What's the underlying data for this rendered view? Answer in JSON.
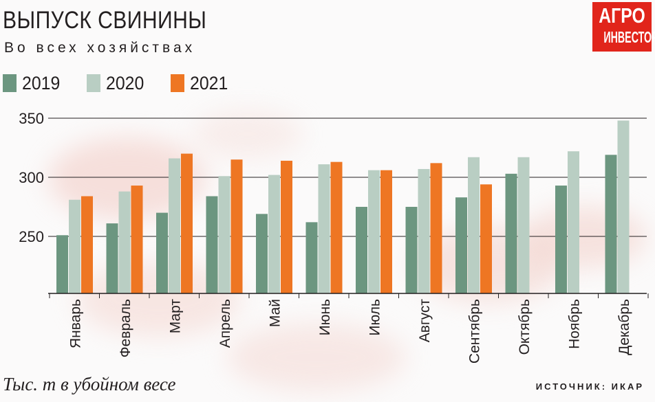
{
  "header": {
    "title": "ВЫПУСК СВИНИНЫ",
    "subtitle": "Во всех хозяйствах"
  },
  "logo": {
    "line1": "АГРО",
    "line2": "ИНВЕСТОР",
    "color": "#e1251b"
  },
  "footer": {
    "unit_note": "Тыс. т в убойном весе",
    "source": "ИСТОЧНИК: ИКАР"
  },
  "chart_data": {
    "type": "bar",
    "title": "ВЫПУСК СВИНИНЫ",
    "subtitle": "Во всех хозяйствах",
    "ylabel": "Тыс. т в убойном весе",
    "xlabel": "",
    "ylim": [
      200,
      350
    ],
    "yticks": [
      250,
      300,
      350
    ],
    "grid": true,
    "legend_position": "top-left",
    "categories": [
      "Январь",
      "Февраль",
      "Март",
      "Апрель",
      "Май",
      "Июнь",
      "Июль",
      "Август",
      "Сентябрь",
      "Октябрь",
      "Ноябрь",
      "Декабрь"
    ],
    "series": [
      {
        "name": "2019",
        "color": "#6c9680",
        "values": [
          251,
          261,
          270,
          284,
          269,
          262,
          275,
          275,
          283,
          303,
          293,
          319
        ]
      },
      {
        "name": "2020",
        "color": "#b9cec3",
        "values": [
          281,
          288,
          316,
          301,
          302,
          311,
          306,
          307,
          317,
          317,
          322,
          348
        ]
      },
      {
        "name": "2021",
        "color": "#ee7623",
        "values": [
          284,
          293,
          320,
          315,
          314,
          313,
          306,
          312,
          294,
          null,
          null,
          null
        ]
      }
    ]
  }
}
